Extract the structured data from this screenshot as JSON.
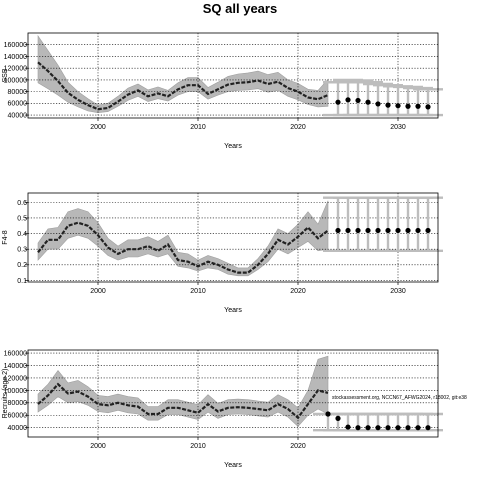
{
  "figure": {
    "title": "SQ all years",
    "colors": {
      "band": "#b8b8b8",
      "line": "#222222",
      "grid": "#000000",
      "whisker": "#bdbdbd",
      "point": "#000000"
    }
  },
  "chart_data": [
    {
      "type": "line",
      "xlabel": "Years",
      "ylabel": "SSB",
      "xlim": [
        1993,
        2034
      ],
      "ylim": [
        35000,
        180000
      ],
      "xticks": [
        2000,
        2010,
        2020,
        2030
      ],
      "yticks": [
        40000,
        60000,
        80000,
        100000,
        120000,
        140000,
        160000
      ],
      "grid": true,
      "annotation": "",
      "series": [
        {
          "kind": "estimate",
          "x": [
            1994,
            1995,
            1996,
            1997,
            1998,
            1999,
            2000,
            2001,
            2002,
            2003,
            2004,
            2005,
            2006,
            2007,
            2008,
            2009,
            2010,
            2011,
            2012,
            2013,
            2014,
            2015,
            2016,
            2017,
            2018,
            2019,
            2020,
            2021,
            2022,
            2023
          ],
          "values": [
            130000,
            115000,
            98000,
            78000,
            66000,
            57000,
            50000,
            52000,
            63000,
            75000,
            82000,
            72000,
            77000,
            72000,
            84000,
            91000,
            91000,
            76000,
            84000,
            92000,
            95000,
            96000,
            99000,
            93000,
            97000,
            86000,
            80000,
            70000,
            67000,
            74000
          ],
          "lower": [
            95000,
            85000,
            74000,
            62000,
            54000,
            47000,
            44000,
            46000,
            55000,
            65000,
            72000,
            63000,
            68000,
            64000,
            74000,
            80000,
            80000,
            67000,
            74000,
            80000,
            82000,
            83000,
            85000,
            79000,
            82000,
            72000,
            66000,
            58000,
            54000,
            55000
          ],
          "upper": [
            175000,
            150000,
            125000,
            96000,
            80000,
            68000,
            57000,
            60000,
            72000,
            86000,
            93000,
            83000,
            88000,
            82000,
            95000,
            104000,
            104000,
            87000,
            96000,
            106000,
            110000,
            112000,
            115000,
            109000,
            113000,
            100000,
            94000,
            84000,
            82000,
            101000
          ]
        },
        {
          "kind": "projection",
          "x": [
            2024,
            2025,
            2026,
            2027,
            2028,
            2029,
            2030,
            2031,
            2032,
            2033
          ],
          "values": [
            62000,
            66000,
            65000,
            62000,
            59000,
            57000,
            56000,
            55000,
            55000,
            54000
          ],
          "lower": [
            40000,
            40000,
            40000,
            40000,
            40000,
            40000,
            40000,
            40000,
            40000,
            40000
          ],
          "upper": [
            96000,
            100000,
            99000,
            96000,
            93000,
            91000,
            89000,
            88000,
            86000,
            84000
          ]
        }
      ]
    },
    {
      "type": "line",
      "xlabel": "Years",
      "ylabel": "F4-8",
      "xlim": [
        1993,
        2034
      ],
      "ylim": [
        0.09,
        0.66
      ],
      "xticks": [
        2000,
        2010,
        2020,
        2030
      ],
      "yticks": [
        0.1,
        0.2,
        0.3,
        0.4,
        0.5,
        0.6
      ],
      "grid": true,
      "annotation": "",
      "series": [
        {
          "kind": "estimate",
          "x": [
            1994,
            1995,
            1996,
            1997,
            1998,
            1999,
            2000,
            2001,
            2002,
            2003,
            2004,
            2005,
            2006,
            2007,
            2008,
            2009,
            2010,
            2011,
            2012,
            2013,
            2014,
            2015,
            2016,
            2017,
            2018,
            2019,
            2020,
            2021,
            2022,
            2023
          ],
          "values": [
            0.28,
            0.36,
            0.36,
            0.45,
            0.47,
            0.45,
            0.39,
            0.31,
            0.27,
            0.3,
            0.3,
            0.32,
            0.29,
            0.33,
            0.23,
            0.22,
            0.19,
            0.22,
            0.2,
            0.17,
            0.15,
            0.15,
            0.2,
            0.27,
            0.36,
            0.33,
            0.38,
            0.44,
            0.37,
            0.42
          ],
          "lower": [
            0.23,
            0.3,
            0.3,
            0.37,
            0.39,
            0.37,
            0.32,
            0.26,
            0.23,
            0.25,
            0.25,
            0.27,
            0.25,
            0.27,
            0.19,
            0.18,
            0.16,
            0.18,
            0.17,
            0.14,
            0.13,
            0.13,
            0.17,
            0.22,
            0.3,
            0.27,
            0.31,
            0.35,
            0.29,
            0.3
          ],
          "upper": [
            0.34,
            0.43,
            0.44,
            0.54,
            0.56,
            0.54,
            0.47,
            0.37,
            0.32,
            0.36,
            0.36,
            0.38,
            0.35,
            0.39,
            0.28,
            0.27,
            0.23,
            0.26,
            0.24,
            0.21,
            0.18,
            0.18,
            0.24,
            0.32,
            0.43,
            0.4,
            0.46,
            0.54,
            0.46,
            0.61
          ]
        },
        {
          "kind": "projection",
          "x": [
            2024,
            2025,
            2026,
            2027,
            2028,
            2029,
            2030,
            2031,
            2032,
            2033
          ],
          "values": [
            0.42,
            0.42,
            0.42,
            0.42,
            0.42,
            0.42,
            0.42,
            0.42,
            0.42,
            0.42
          ],
          "lower": [
            0.29,
            0.29,
            0.29,
            0.29,
            0.29,
            0.29,
            0.29,
            0.29,
            0.29,
            0.29
          ],
          "upper": [
            0.63,
            0.63,
            0.63,
            0.63,
            0.63,
            0.63,
            0.63,
            0.63,
            0.63,
            0.63
          ]
        }
      ]
    },
    {
      "type": "line",
      "xlabel": "Years",
      "ylabel": "Recruits (age 2)",
      "xlim": [
        1993,
        2034
      ],
      "ylim": [
        25000,
        165000
      ],
      "xticks": [
        2000,
        2010,
        2020
      ],
      "yticks": [
        40000,
        60000,
        80000,
        100000,
        120000,
        140000,
        160000
      ],
      "grid": true,
      "annotation": "stockassessment.org, NCCN67_AFWG2024, r18002, git:e38",
      "series": [
        {
          "kind": "estimate",
          "x": [
            1994,
            1995,
            1996,
            1997,
            1998,
            1999,
            2000,
            2001,
            2002,
            2003,
            2004,
            2005,
            2006,
            2007,
            2008,
            2009,
            2010,
            2011,
            2012,
            2013,
            2014,
            2015,
            2016,
            2017,
            2018,
            2019,
            2020,
            2021,
            2022,
            2023
          ],
          "values": [
            78000,
            92000,
            110000,
            95000,
            98000,
            90000,
            78000,
            76000,
            80000,
            76000,
            74000,
            62000,
            62000,
            72000,
            72000,
            68000,
            64000,
            78000,
            66000,
            72000,
            73000,
            72000,
            70000,
            68000,
            78000,
            70000,
            56000,
            78000,
            100000,
            96000
          ],
          "lower": [
            65000,
            76000,
            90000,
            80000,
            82000,
            76000,
            66000,
            64000,
            68000,
            64000,
            62000,
            52000,
            52000,
            61000,
            61000,
            57000,
            53000,
            65000,
            55000,
            61000,
            62000,
            61000,
            59000,
            57000,
            65000,
            57000,
            42000,
            60000,
            70000,
            62000
          ],
          "upper": [
            94000,
            110000,
            132000,
            112000,
            116000,
            106000,
            92000,
            90000,
            94000,
            90000,
            88000,
            74000,
            74000,
            85000,
            85000,
            81000,
            77000,
            93000,
            79000,
            85000,
            86000,
            85000,
            83000,
            81000,
            93000,
            85000,
            72000,
            100000,
            150000,
            155000
          ]
        },
        {
          "kind": "projection",
          "x": [
            2023,
            2024,
            2025,
            2026,
            2027,
            2028,
            2029,
            2030,
            2031,
            2032,
            2033
          ],
          "values": [
            62000,
            55000,
            41000,
            40000,
            40000,
            40000,
            40000,
            40000,
            40000,
            40000,
            40000
          ],
          "lower": [
            36000,
            36000,
            36000,
            36000,
            36000,
            36000,
            36000,
            36000,
            36000,
            36000,
            36000
          ],
          "upper": [
            62000,
            62000,
            62000,
            62000,
            62000,
            62000,
            62000,
            62000,
            62000,
            62000,
            62000
          ]
        }
      ]
    }
  ]
}
